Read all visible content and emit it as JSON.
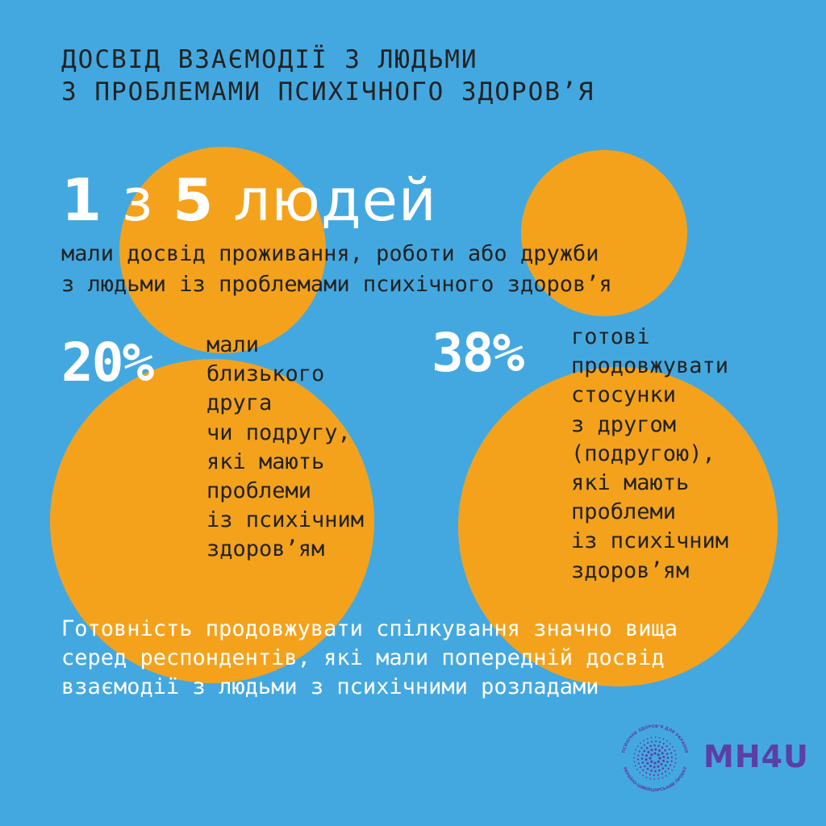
{
  "colors": {
    "background": "#44a8e0",
    "circles": "#f4a21c",
    "dark_text": "#222222",
    "light_text": "#ffffff",
    "logo": "#5b3fa6"
  },
  "title": {
    "line1": "ДОСВІД ВЗАЄМОДІЇ З ЛЮДЬМИ",
    "line2": "З ПРОБЛЕМАМИ ПСИХІЧНОГО ЗДОРОВ’Я"
  },
  "headline": {
    "number_one": "1",
    "connector": "з",
    "number_two": "5",
    "word": "людей"
  },
  "subline": {
    "line1": "мали досвід проживання, роботи або дружби",
    "line2": "з людьми із проблемами психічного здоров’я"
  },
  "stats": [
    {
      "value": "20%",
      "lines": [
        "мали",
        "близького",
        "друга",
        "чи подругу,",
        "які мають",
        "проблеми",
        "із психічним",
        "здоров’ям"
      ]
    },
    {
      "value": "38%",
      "lines": [
        "готові",
        "продовжувати",
        "стосунки",
        "з другом",
        "(подругою),",
        "які мають",
        "проблеми",
        "із психічним",
        "здоров’ям"
      ]
    }
  ],
  "footer": {
    "line1": "Готовність продовжувати спілкування значно вища",
    "line2": "серед респондентів, які мали попередній досвід",
    "line3": "взаємодії з людьми з психічними розладами"
  },
  "logo": {
    "text": "MH4U",
    "ring_top": "ПСИХІЧНЕ ЗДОРОВ’Я ДЛЯ УКРАЇНИ",
    "ring_bottom": "УКРАЇНО-ШВЕЙЦАРСЬКИЙ ПРОЕКТ",
    "icon": "dotted-sun-logo-icon"
  }
}
